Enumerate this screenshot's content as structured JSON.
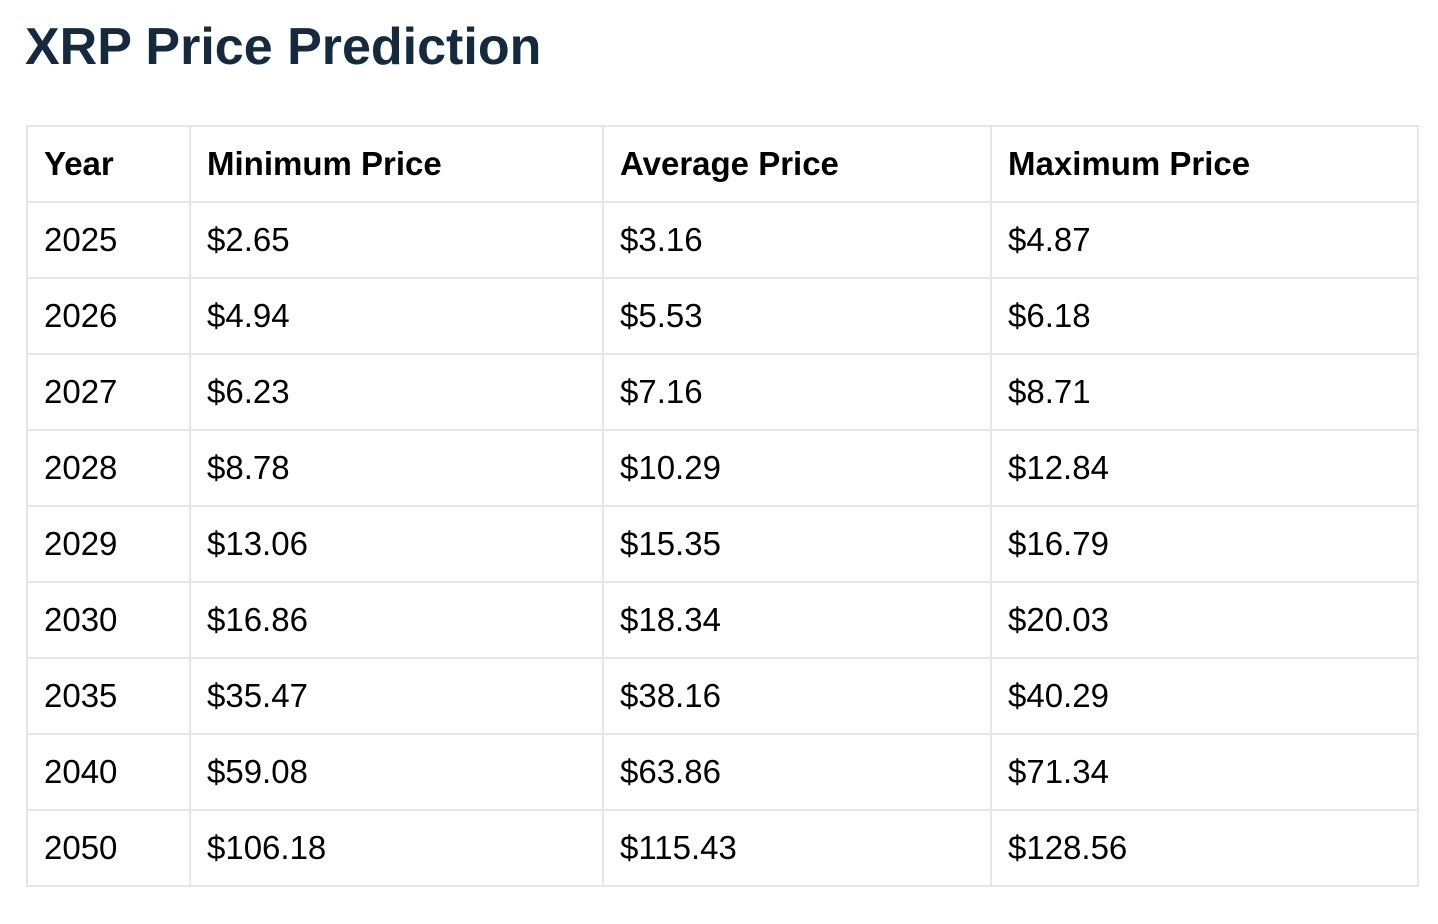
{
  "title": "XRP Price Prediction",
  "table": {
    "header": [
      "Year",
      "Minimum Price",
      "Average Price",
      "Maximum Price"
    ],
    "rows": [
      [
        "2025",
        "$2.65",
        "$3.16",
        "$4.87"
      ],
      [
        "2026",
        "$4.94",
        "$5.53",
        "$6.18"
      ],
      [
        "2027",
        "$6.23",
        "$7.16",
        "$8.71"
      ],
      [
        "2028",
        "$8.78",
        "$10.29",
        "$12.84"
      ],
      [
        "2029",
        "$13.06",
        "$15.35",
        "$16.79"
      ],
      [
        "2030",
        "$16.86",
        "$18.34",
        "$20.03"
      ],
      [
        "2035",
        "$35.47",
        "$38.16",
        "$40.29"
      ],
      [
        "2040",
        "$59.08",
        "$63.86",
        "$71.34"
      ],
      [
        "2050",
        "$106.18",
        "$115.43",
        "$128.56"
      ]
    ]
  }
}
